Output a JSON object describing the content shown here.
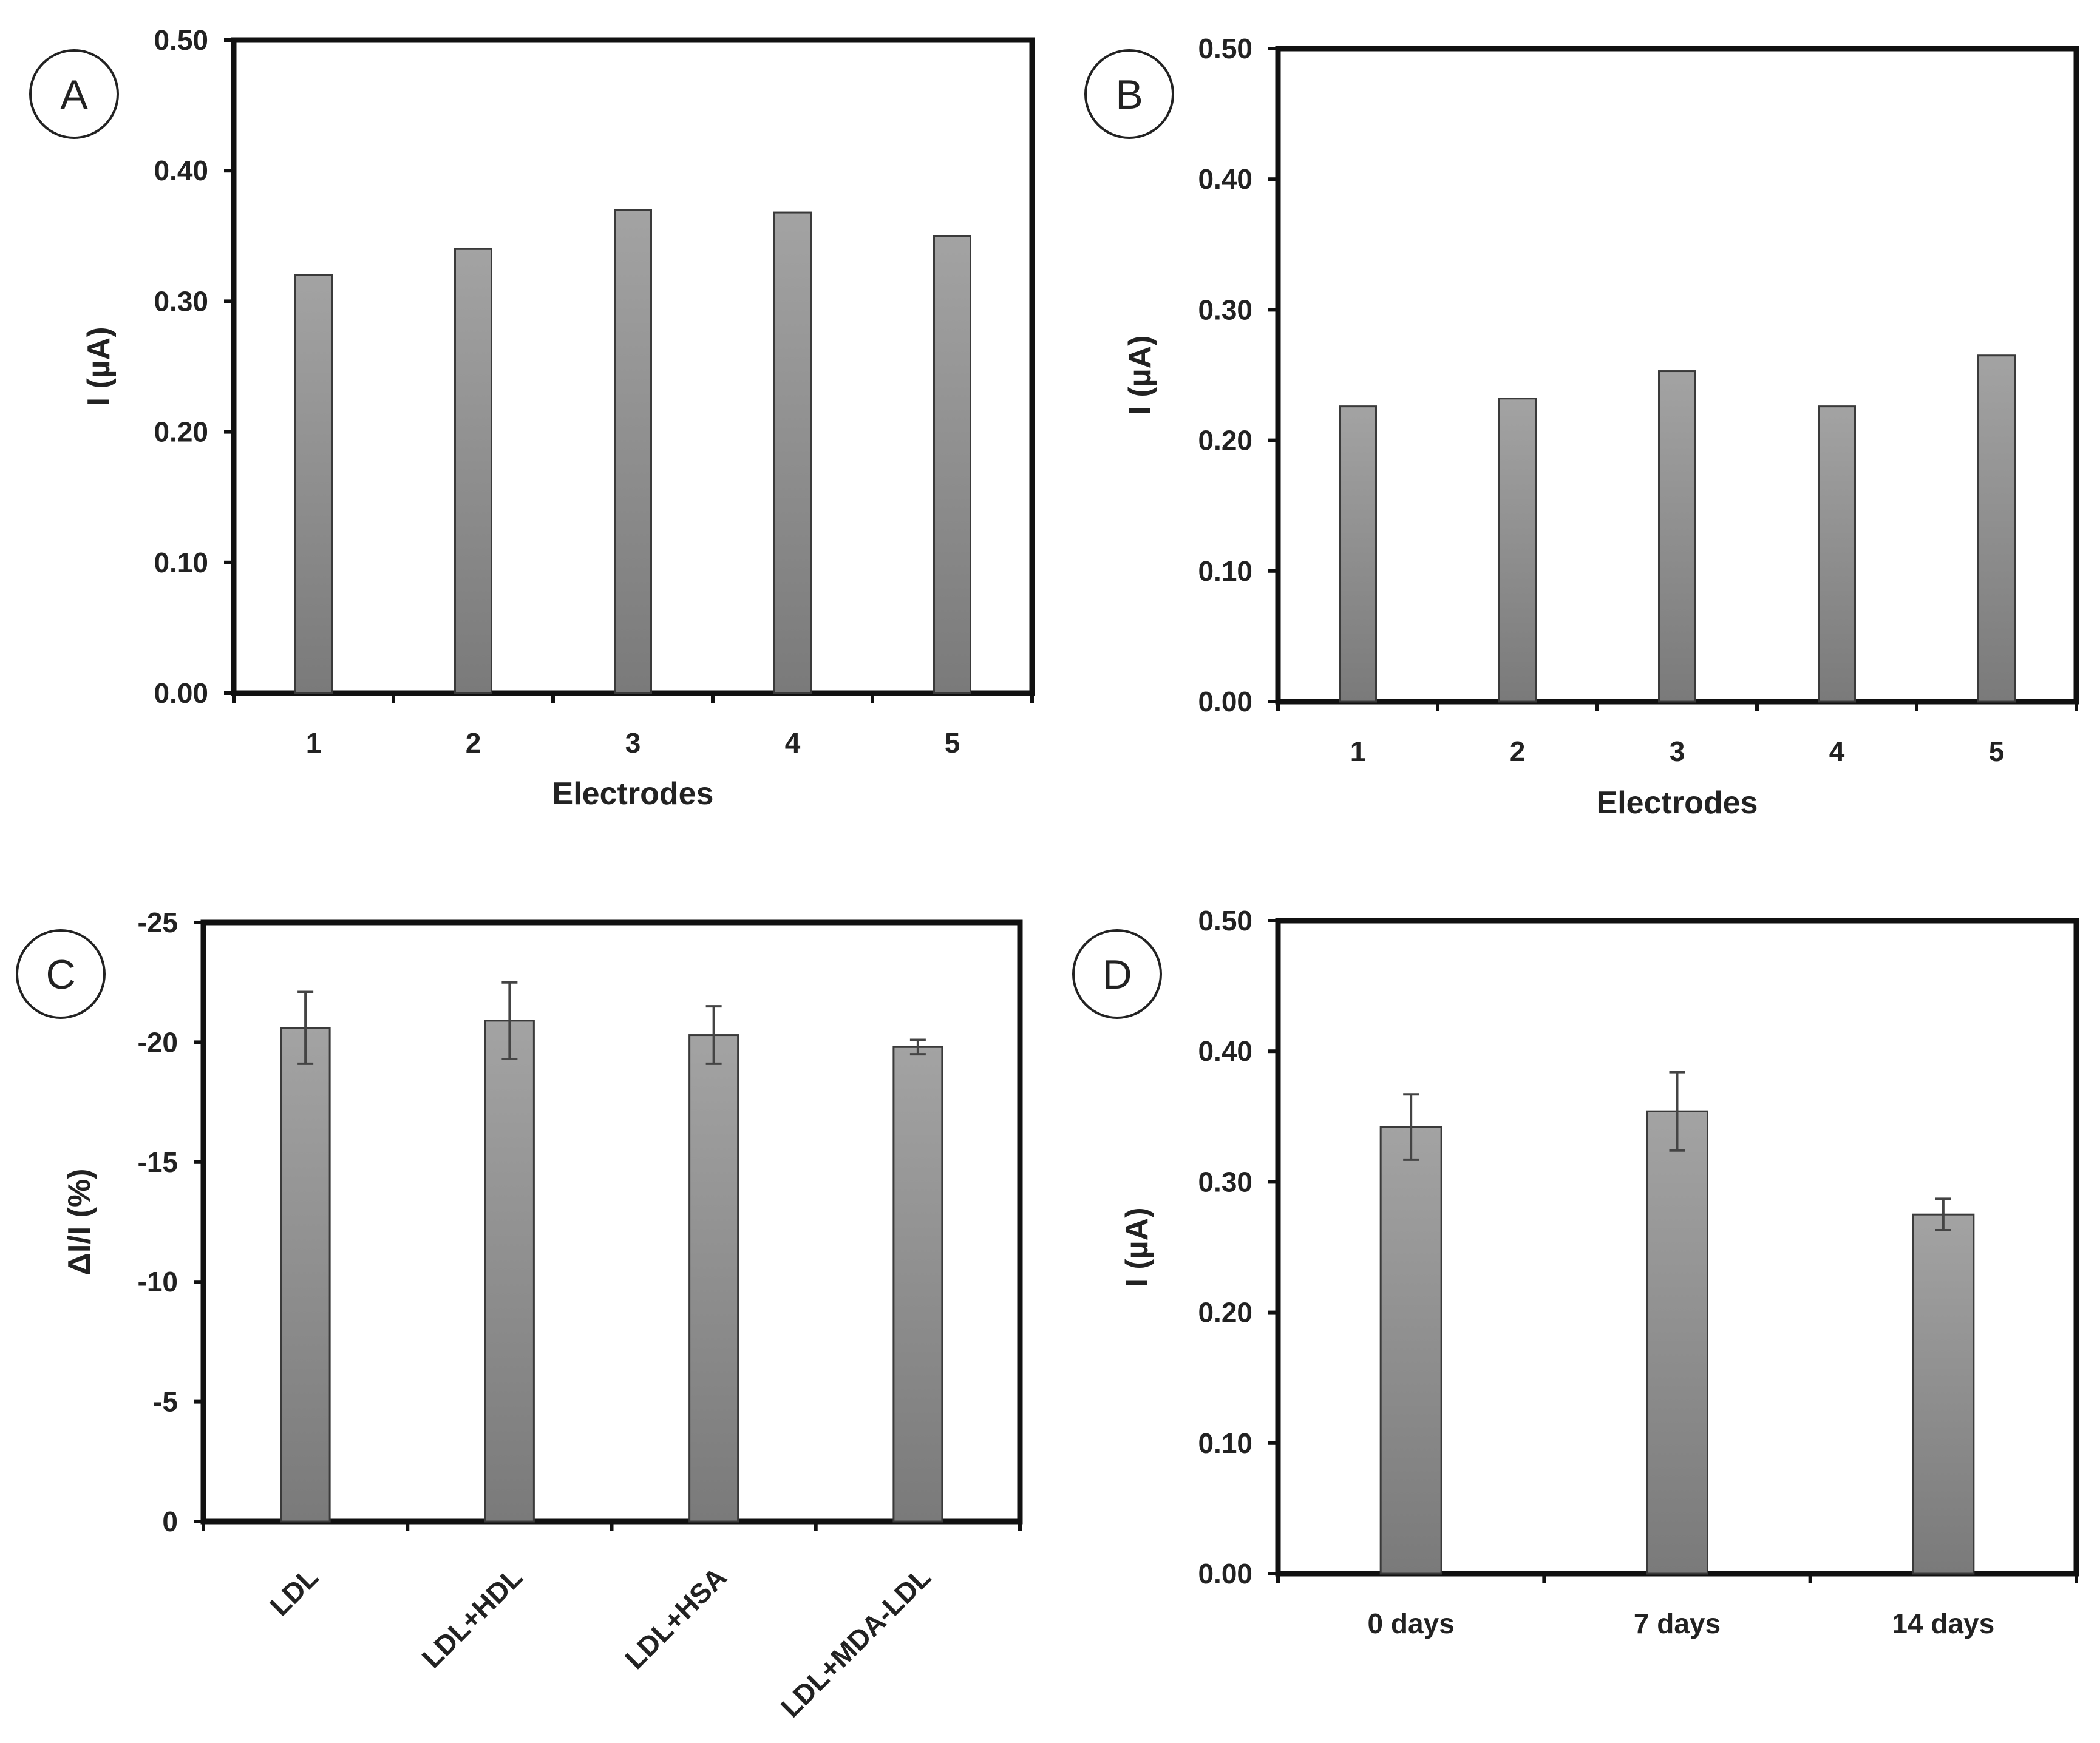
{
  "chart_data": [
    {
      "panel": "A",
      "type": "bar",
      "categories": [
        "1",
        "2",
        "3",
        "4",
        "5"
      ],
      "tick_labels": [
        "0.00",
        "0.10",
        "0.20",
        "0.30",
        "0.40",
        "0.50"
      ],
      "ticks": [
        0,
        0.1,
        0.2,
        0.3,
        0.4,
        0.5
      ],
      "values": [
        0.32,
        0.34,
        0.37,
        0.368,
        0.35
      ],
      "xlabel": "Electrodes",
      "ylabel": "I (µA)",
      "ylim": [
        0,
        0.5
      ],
      "bar_color": "#8c8c8c"
    },
    {
      "panel": "B",
      "type": "bar",
      "categories": [
        "1",
        "2",
        "3",
        "4",
        "5"
      ],
      "tick_labels": [
        "0.00",
        "0.10",
        "0.20",
        "0.30",
        "0.40",
        "0.50"
      ],
      "ticks": [
        0,
        0.1,
        0.2,
        0.3,
        0.4,
        0.5
      ],
      "values": [
        0.226,
        0.232,
        0.253,
        0.226,
        0.265
      ],
      "xlabel": "Electrodes",
      "ylabel": "I (µA)",
      "ylim": [
        0,
        0.5
      ],
      "bar_color": "#8c8c8c"
    },
    {
      "panel": "C",
      "type": "bar",
      "categories": [
        "LDL",
        "LDL+HDL",
        "LDL+HSA",
        "LDL+MDA-LDL"
      ],
      "tick_labels": [
        "0",
        "-5",
        "-10",
        "-15",
        "-20",
        "-25"
      ],
      "ticks": [
        0,
        -5,
        -10,
        -15,
        -20,
        -25
      ],
      "values": [
        -20.6,
        -20.9,
        -20.3,
        -19.8
      ],
      "errors": [
        1.5,
        1.6,
        1.2,
        0.3
      ],
      "xlabel": "",
      "ylabel": "ΔI/I (%)",
      "ylim": [
        0,
        -25
      ],
      "bar_color": "#8c8c8c"
    },
    {
      "panel": "D",
      "type": "bar",
      "categories": [
        "0 days",
        "7 days",
        "14 days"
      ],
      "tick_labels": [
        "0.00",
        "0.10",
        "0.20",
        "0.30",
        "0.40",
        "0.50"
      ],
      "ticks": [
        0,
        0.1,
        0.2,
        0.3,
        0.4,
        0.5
      ],
      "values": [
        0.342,
        0.354,
        0.275
      ],
      "errors": [
        0.025,
        0.03,
        0.012
      ],
      "xlabel": "",
      "ylabel": "I (µA)",
      "ylim": [
        0,
        0.5
      ],
      "bar_color": "#8c8c8c"
    }
  ]
}
